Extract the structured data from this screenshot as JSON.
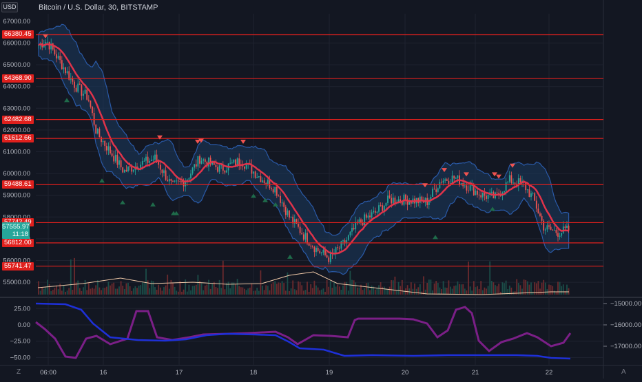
{
  "header": {
    "title": "Bitcoin / U.S. Dollar, 30, BITSTAMP",
    "currency_button": "USD"
  },
  "price_axis": {
    "ticks": [
      "66000.00",
      "65000.00",
      "64000.00",
      "63000.00",
      "62000.00",
      "61000.00",
      "60000.00",
      "59000.00",
      "58000.00",
      "57000.00",
      "56000.00",
      "55000.00"
    ],
    "tick_values": [
      66000,
      65000,
      64000,
      63000,
      62000,
      61000,
      60000,
      59000,
      58000,
      57000,
      56000,
      55000
    ],
    "top_partial": "67000.00",
    "levels": [
      {
        "label": "66380.45",
        "value": 66380.45
      },
      {
        "label": "64368.90",
        "value": 64368.9
      },
      {
        "label": "62482.68",
        "value": 62482.68
      },
      {
        "label": "61612.66",
        "value": 61612.66
      },
      {
        "label": "59488.61",
        "value": 59488.61
      },
      {
        "label": "57742.49",
        "value": 57742.49
      },
      {
        "label": "56812.00",
        "value": 56812.0
      },
      {
        "label": "55741.47",
        "value": 55741.47
      }
    ],
    "current_price": "57555.97",
    "countdown": "11:18"
  },
  "oscillator_axis": {
    "left_ticks": [
      "25.00",
      "0.00",
      "−25.00",
      "−50.00"
    ],
    "left_values": [
      25,
      0,
      -25,
      -50
    ],
    "right_ticks": [
      "−15000.00",
      "−16000.00",
      "−17000.00"
    ]
  },
  "time_axis": {
    "labels": [
      "06:00",
      "16",
      "17",
      "18",
      "19",
      "20",
      "21",
      "22"
    ]
  },
  "footer": {
    "left_button": "Z",
    "right_button": "A"
  },
  "colors": {
    "background": "#131722",
    "level_line": "#e0201d",
    "ma": "#e0334a",
    "band_fill": "#1c3a5e",
    "band_edge": "#2a5aa8",
    "up": "#26a69a",
    "down": "#ef5350",
    "osc_purple": "#7b1f87",
    "osc_blue": "#1e30d8"
  }
}
